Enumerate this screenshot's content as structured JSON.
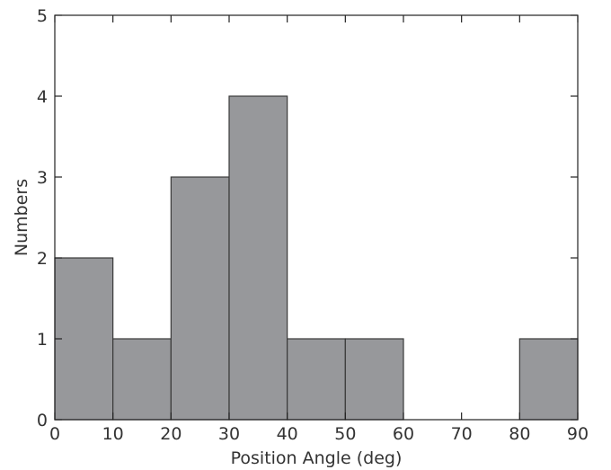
{
  "chart_data": {
    "type": "bar",
    "title": "",
    "xlabel": "Position Angle (deg)",
    "ylabel": "Numbers",
    "xlim": [
      0,
      90
    ],
    "ylim": [
      0,
      5
    ],
    "grid": false,
    "bin_edges": [
      0,
      10,
      20,
      30,
      40,
      50,
      60,
      70,
      80,
      90
    ],
    "values": [
      2,
      1,
      3,
      4,
      1,
      1,
      0,
      0,
      1
    ],
    "x_ticks": [
      "0",
      "10",
      "20",
      "30",
      "40",
      "50",
      "60",
      "70",
      "80",
      "90"
    ],
    "y_ticks": [
      "0",
      "1",
      "2",
      "3",
      "4",
      "5"
    ],
    "colors": {
      "bar_fill": "#97989b",
      "bar_edge": "#3a3a3a",
      "axis": "#222222"
    }
  }
}
